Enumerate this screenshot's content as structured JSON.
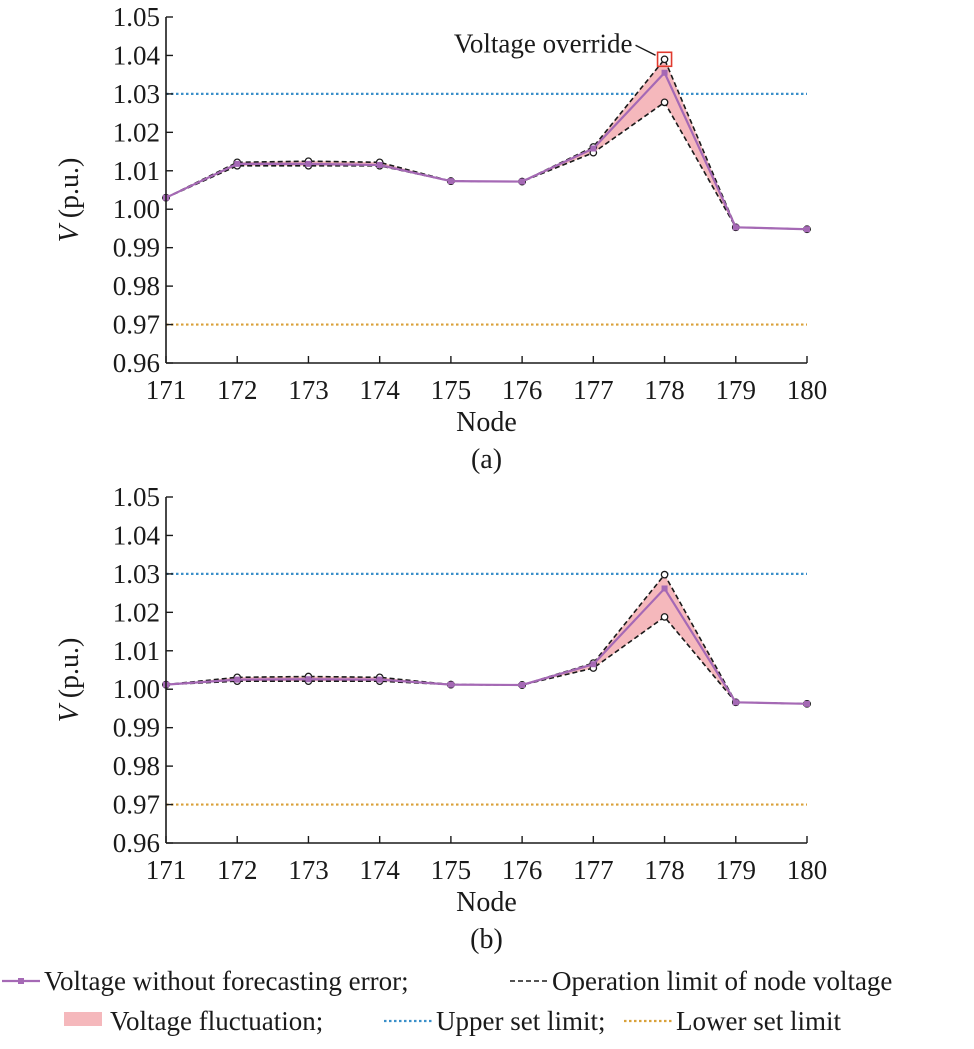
{
  "chart_data": [
    {
      "type": "line",
      "panel_label": "(a)",
      "xlabel": "Node",
      "ylabel_main": "V",
      "ylabel_unit": " (p.u.)",
      "categories": [
        "171",
        "172",
        "173",
        "174",
        "175",
        "176",
        "177",
        "178",
        "179",
        "180"
      ],
      "yticks": [
        "0.96",
        "0.97",
        "0.98",
        "0.99",
        "1.00",
        "1.01",
        "1.02",
        "1.03",
        "1.04",
        "1.05"
      ],
      "ylim": [
        0.96,
        1.05
      ],
      "series": {
        "voltage": [
          1.003,
          1.0118,
          1.0118,
          1.0115,
          1.0073,
          1.0072,
          1.0158,
          1.0355,
          0.9953,
          0.9948
        ],
        "upper_operation": [
          1.003,
          1.0122,
          1.0125,
          1.0122,
          1.0073,
          1.0072,
          1.0162,
          1.039,
          0.9953,
          0.9948
        ],
        "lower_operation": [
          1.003,
          1.0113,
          1.0113,
          1.0113,
          1.0073,
          1.0072,
          1.0147,
          1.0278,
          0.9953,
          0.9948
        ]
      },
      "upper_set_limit": 1.03,
      "lower_set_limit": 0.97,
      "annotation": {
        "text": "Voltage override",
        "x": "178",
        "y": 1.039
      }
    },
    {
      "type": "line",
      "panel_label": "(b)",
      "xlabel": "Node",
      "ylabel_main": "V",
      "ylabel_unit": " (p.u.)",
      "categories": [
        "171",
        "172",
        "173",
        "174",
        "175",
        "176",
        "177",
        "178",
        "179",
        "180"
      ],
      "yticks": [
        "0.96",
        "0.97",
        "0.98",
        "0.99",
        "1.00",
        "1.01",
        "1.02",
        "1.03",
        "1.04",
        "1.05"
      ],
      "ylim": [
        0.96,
        1.05
      ],
      "series": {
        "voltage": [
          1.0012,
          1.0025,
          1.0026,
          1.0025,
          1.0012,
          1.0011,
          1.0065,
          1.0262,
          0.9966,
          0.9962
        ],
        "upper_operation": [
          1.0012,
          1.0031,
          1.0033,
          1.0031,
          1.0012,
          1.0011,
          1.0068,
          1.0298,
          0.9966,
          0.9962
        ],
        "lower_operation": [
          1.0012,
          1.0021,
          1.0021,
          1.0021,
          1.0012,
          1.0011,
          1.0055,
          1.0188,
          0.9966,
          0.9962
        ]
      },
      "upper_set_limit": 1.03,
      "lower_set_limit": 0.97
    }
  ],
  "legend": {
    "line1": [
      {
        "key": "voltage",
        "label": "Voltage without forecasting error;"
      },
      {
        "key": "operation",
        "label": "Operation limit of node voltage"
      }
    ],
    "line2": [
      {
        "key": "fluctuation",
        "label": "Voltage fluctuation;"
      },
      {
        "key": "upper",
        "label": "Upper set limit;"
      },
      {
        "key": "lower",
        "label": "Lower set limit"
      }
    ]
  },
  "colors": {
    "voltage": "#a569b5",
    "operation": "#1a1a1a",
    "fluctuation": "#f5b8bc",
    "upper": "#3a8fc9",
    "lower": "#d9a13a",
    "override_box": "#e03a2e",
    "axis": "#1a1a1a"
  }
}
